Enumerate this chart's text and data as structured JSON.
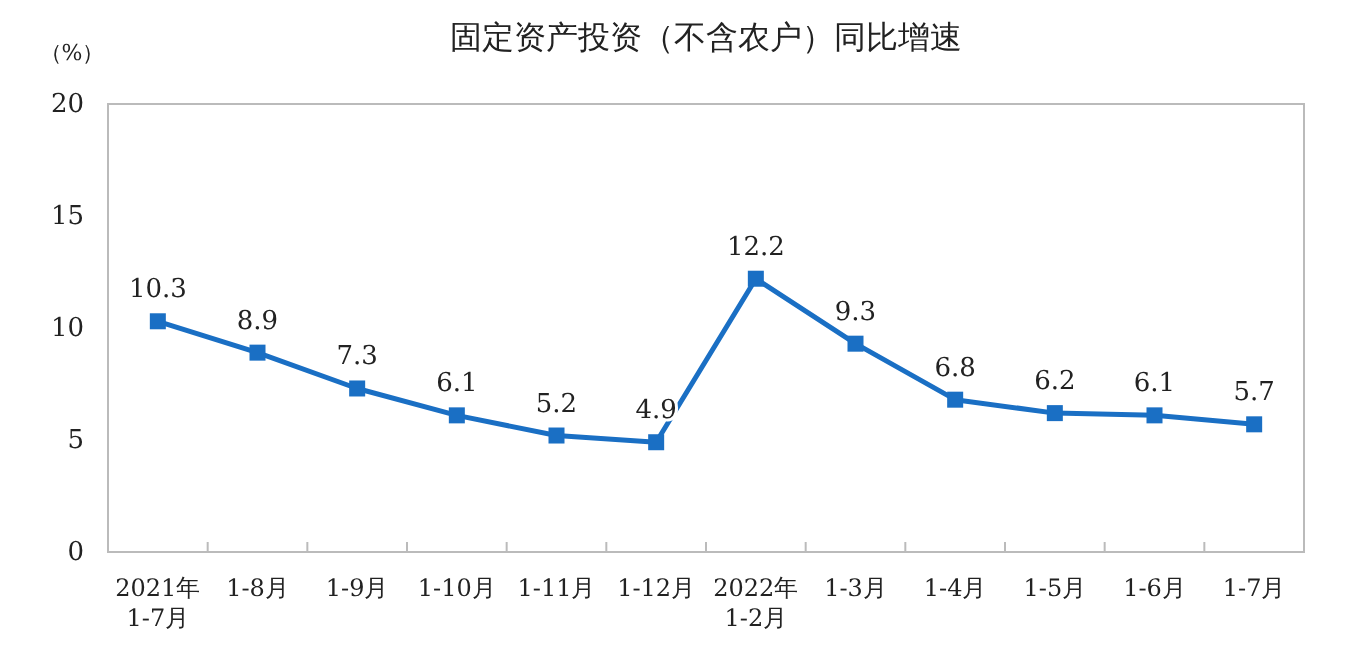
{
  "chart_data": {
    "type": "line",
    "title": "固定资产投资（不含农户）同比增速",
    "ylabel": "（%）",
    "categories": [
      "2021年\n1-7月",
      "1-8月",
      "1-9月",
      "1-10月",
      "1-11月",
      "1-12月",
      "2022年\n1-2月",
      "1-3月",
      "1-4月",
      "1-5月",
      "1-6月",
      "1-7月"
    ],
    "series": [
      {
        "color": "#1a6fc4",
        "values": [
          10.3,
          8.9,
          7.3,
          6.1,
          5.2,
          4.9,
          12.2,
          9.3,
          6.8,
          6.2,
          6.1,
          5.7
        ]
      }
    ],
    "ylim": [
      0,
      20
    ],
    "yticks": [
      0,
      5,
      10,
      15,
      20
    ],
    "marker": "square",
    "line_style": "solid",
    "data_labels": true
  }
}
